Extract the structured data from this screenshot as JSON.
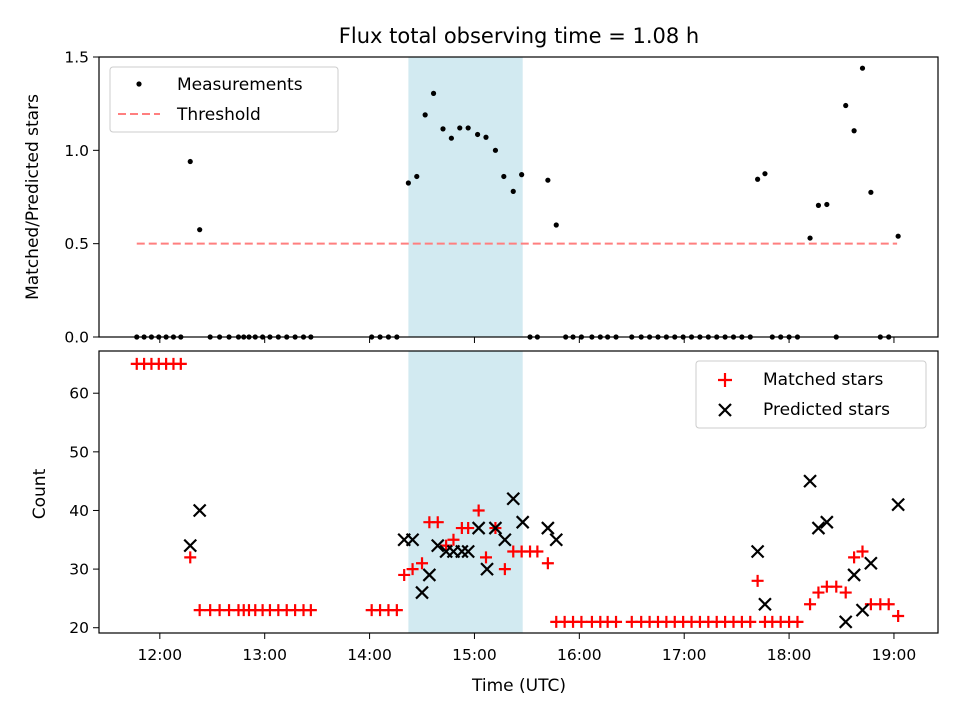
{
  "title": "Flux total observing time = 1.08 h",
  "colors": {
    "measurements": "#000000",
    "threshold": "#ff7f7f",
    "matched": "#ff0000",
    "predicted": "#000000",
    "shade": "#add8e6"
  },
  "chart_data": [
    {
      "type": "scatter",
      "title": "Flux total observing time = 1.08 h",
      "xlabel": "",
      "ylabel": "Matched/Predicted stars",
      "ylim": [
        0,
        1.5
      ],
      "yticks": [
        "0.0",
        "0.5",
        "1.0",
        "1.5"
      ],
      "legend": "top-left",
      "highlight_span": [
        14.37,
        15.46
      ],
      "threshold": {
        "name": "Threshold",
        "y": 0.5,
        "x_range": [
          11.78,
          19.03
        ],
        "style": "dashed"
      },
      "series": [
        {
          "name": "Measurements",
          "marker": "dot",
          "points": [
            [
              11.78,
              0
            ],
            [
              11.85,
              0
            ],
            [
              11.92,
              0
            ],
            [
              11.99,
              0
            ],
            [
              12.06,
              0
            ],
            [
              12.13,
              0
            ],
            [
              12.2,
              0
            ],
            [
              12.29,
              0.94
            ],
            [
              12.38,
              0.575
            ],
            [
              12.48,
              0
            ],
            [
              12.57,
              0
            ],
            [
              12.66,
              0
            ],
            [
              12.75,
              0
            ],
            [
              12.8,
              0
            ],
            [
              12.85,
              0
            ],
            [
              12.91,
              0
            ],
            [
              12.98,
              0
            ],
            [
              13.05,
              0
            ],
            [
              13.13,
              0
            ],
            [
              13.21,
              0
            ],
            [
              13.29,
              0
            ],
            [
              13.37,
              0
            ],
            [
              13.44,
              0
            ],
            [
              14.02,
              0
            ],
            [
              14.1,
              0
            ],
            [
              14.18,
              0
            ],
            [
              14.26,
              0
            ],
            [
              14.37,
              0.825
            ],
            [
              14.45,
              0.86
            ],
            [
              14.53,
              1.19
            ],
            [
              14.61,
              1.305
            ],
            [
              14.7,
              1.115
            ],
            [
              14.78,
              1.065
            ],
            [
              14.86,
              1.12
            ],
            [
              14.94,
              1.12
            ],
            [
              15.03,
              1.085
            ],
            [
              15.11,
              1.07
            ],
            [
              15.2,
              1.0
            ],
            [
              15.28,
              0.86
            ],
            [
              15.37,
              0.78
            ],
            [
              15.45,
              0.87
            ],
            [
              15.53,
              0
            ],
            [
              15.6,
              0
            ],
            [
              15.7,
              0.84
            ],
            [
              15.78,
              0.6
            ],
            [
              15.87,
              0
            ],
            [
              15.94,
              0
            ],
            [
              16.02,
              0
            ],
            [
              16.12,
              0
            ],
            [
              16.2,
              0
            ],
            [
              16.27,
              0
            ],
            [
              16.35,
              0
            ],
            [
              16.5,
              0
            ],
            [
              16.59,
              0
            ],
            [
              16.67,
              0
            ],
            [
              16.75,
              0
            ],
            [
              16.83,
              0
            ],
            [
              16.91,
              0
            ],
            [
              16.99,
              0
            ],
            [
              17.07,
              0
            ],
            [
              17.15,
              0
            ],
            [
              17.23,
              0
            ],
            [
              17.31,
              0
            ],
            [
              17.39,
              0
            ],
            [
              17.47,
              0
            ],
            [
              17.55,
              0
            ],
            [
              17.63,
              0
            ],
            [
              17.7,
              0.845
            ],
            [
              17.77,
              0.875
            ],
            [
              17.84,
              0
            ],
            [
              17.92,
              0
            ],
            [
              18.0,
              0
            ],
            [
              18.08,
              0
            ],
            [
              18.2,
              0.53
            ],
            [
              18.28,
              0.705
            ],
            [
              18.36,
              0.71
            ],
            [
              18.45,
              0
            ],
            [
              18.54,
              1.24
            ],
            [
              18.62,
              1.105
            ],
            [
              18.7,
              1.44
            ],
            [
              18.78,
              0.775
            ],
            [
              18.87,
              0
            ],
            [
              18.95,
              0
            ],
            [
              19.04,
              0.54
            ]
          ]
        }
      ]
    },
    {
      "type": "scatter",
      "xlabel": "Time (UTC)",
      "ylabel": "Count",
      "ylim": [
        19.1,
        67.2
      ],
      "xlim": [
        11.42,
        19.42
      ],
      "yticks": [
        "20",
        "30",
        "40",
        "50",
        "60"
      ],
      "xticks": [
        "12:00",
        "13:00",
        "14:00",
        "15:00",
        "16:00",
        "17:00",
        "18:00",
        "19:00"
      ],
      "legend": "top-right",
      "highlight_span": [
        14.37,
        15.46
      ],
      "series": [
        {
          "name": "Matched stars",
          "marker": "plus",
          "points": [
            [
              11.78,
              65
            ],
            [
              11.85,
              65
            ],
            [
              11.92,
              65
            ],
            [
              11.99,
              65
            ],
            [
              12.06,
              65
            ],
            [
              12.13,
              65
            ],
            [
              12.2,
              65
            ],
            [
              12.29,
              32
            ],
            [
              12.38,
              23
            ],
            [
              12.48,
              23
            ],
            [
              12.57,
              23
            ],
            [
              12.66,
              23
            ],
            [
              12.75,
              23
            ],
            [
              12.8,
              23
            ],
            [
              12.85,
              23
            ],
            [
              12.91,
              23
            ],
            [
              12.98,
              23
            ],
            [
              13.05,
              23
            ],
            [
              13.13,
              23
            ],
            [
              13.21,
              23
            ],
            [
              13.29,
              23
            ],
            [
              13.37,
              23
            ],
            [
              13.44,
              23
            ],
            [
              14.02,
              23
            ],
            [
              14.1,
              23
            ],
            [
              14.18,
              23
            ],
            [
              14.26,
              23
            ],
            [
              14.33,
              29
            ],
            [
              14.41,
              30
            ],
            [
              14.5,
              31
            ],
            [
              14.57,
              38
            ],
            [
              14.65,
              38
            ],
            [
              14.73,
              34
            ],
            [
              14.8,
              35
            ],
            [
              14.88,
              37
            ],
            [
              14.94,
              37
            ],
            [
              15.04,
              40
            ],
            [
              15.11,
              32
            ],
            [
              15.2,
              37
            ],
            [
              15.29,
              30
            ],
            [
              15.37,
              33
            ],
            [
              15.45,
              33
            ],
            [
              15.53,
              33
            ],
            [
              15.6,
              33
            ],
            [
              15.7,
              31
            ],
            [
              15.78,
              21
            ],
            [
              15.86,
              21
            ],
            [
              15.94,
              21
            ],
            [
              16.02,
              21
            ],
            [
              16.12,
              21
            ],
            [
              16.2,
              21
            ],
            [
              16.27,
              21
            ],
            [
              16.35,
              21
            ],
            [
              16.5,
              21
            ],
            [
              16.59,
              21
            ],
            [
              16.67,
              21
            ],
            [
              16.75,
              21
            ],
            [
              16.83,
              21
            ],
            [
              16.91,
              21
            ],
            [
              16.99,
              21
            ],
            [
              17.07,
              21
            ],
            [
              17.15,
              21
            ],
            [
              17.23,
              21
            ],
            [
              17.31,
              21
            ],
            [
              17.39,
              21
            ],
            [
              17.47,
              21
            ],
            [
              17.55,
              21
            ],
            [
              17.63,
              21
            ],
            [
              17.7,
              28
            ],
            [
              17.77,
              21
            ],
            [
              17.84,
              21
            ],
            [
              17.92,
              21
            ],
            [
              18.0,
              21
            ],
            [
              18.08,
              21
            ],
            [
              18.2,
              24
            ],
            [
              18.28,
              26
            ],
            [
              18.36,
              27
            ],
            [
              18.45,
              27
            ],
            [
              18.54,
              26
            ],
            [
              18.62,
              32
            ],
            [
              18.7,
              33
            ],
            [
              18.78,
              24
            ],
            [
              18.87,
              24
            ],
            [
              18.95,
              24
            ],
            [
              19.04,
              22
            ]
          ]
        },
        {
          "name": "Predicted stars",
          "marker": "x",
          "points": [
            [
              12.29,
              34
            ],
            [
              12.38,
              40
            ],
            [
              14.33,
              35
            ],
            [
              14.41,
              35
            ],
            [
              14.5,
              26
            ],
            [
              14.57,
              29
            ],
            [
              14.65,
              34
            ],
            [
              14.73,
              33
            ],
            [
              14.8,
              33
            ],
            [
              14.88,
              33
            ],
            [
              14.94,
              33
            ],
            [
              15.04,
              37
            ],
            [
              15.12,
              30
            ],
            [
              15.2,
              37
            ],
            [
              15.29,
              35
            ],
            [
              15.37,
              42
            ],
            [
              15.46,
              38
            ],
            [
              15.7,
              37
            ],
            [
              15.78,
              35
            ],
            [
              17.7,
              33
            ],
            [
              17.77,
              24
            ],
            [
              18.2,
              45
            ],
            [
              18.28,
              37
            ],
            [
              18.36,
              38
            ],
            [
              18.54,
              21
            ],
            [
              18.62,
              29
            ],
            [
              18.7,
              23
            ],
            [
              18.78,
              31
            ],
            [
              19.04,
              41
            ]
          ]
        }
      ]
    }
  ]
}
